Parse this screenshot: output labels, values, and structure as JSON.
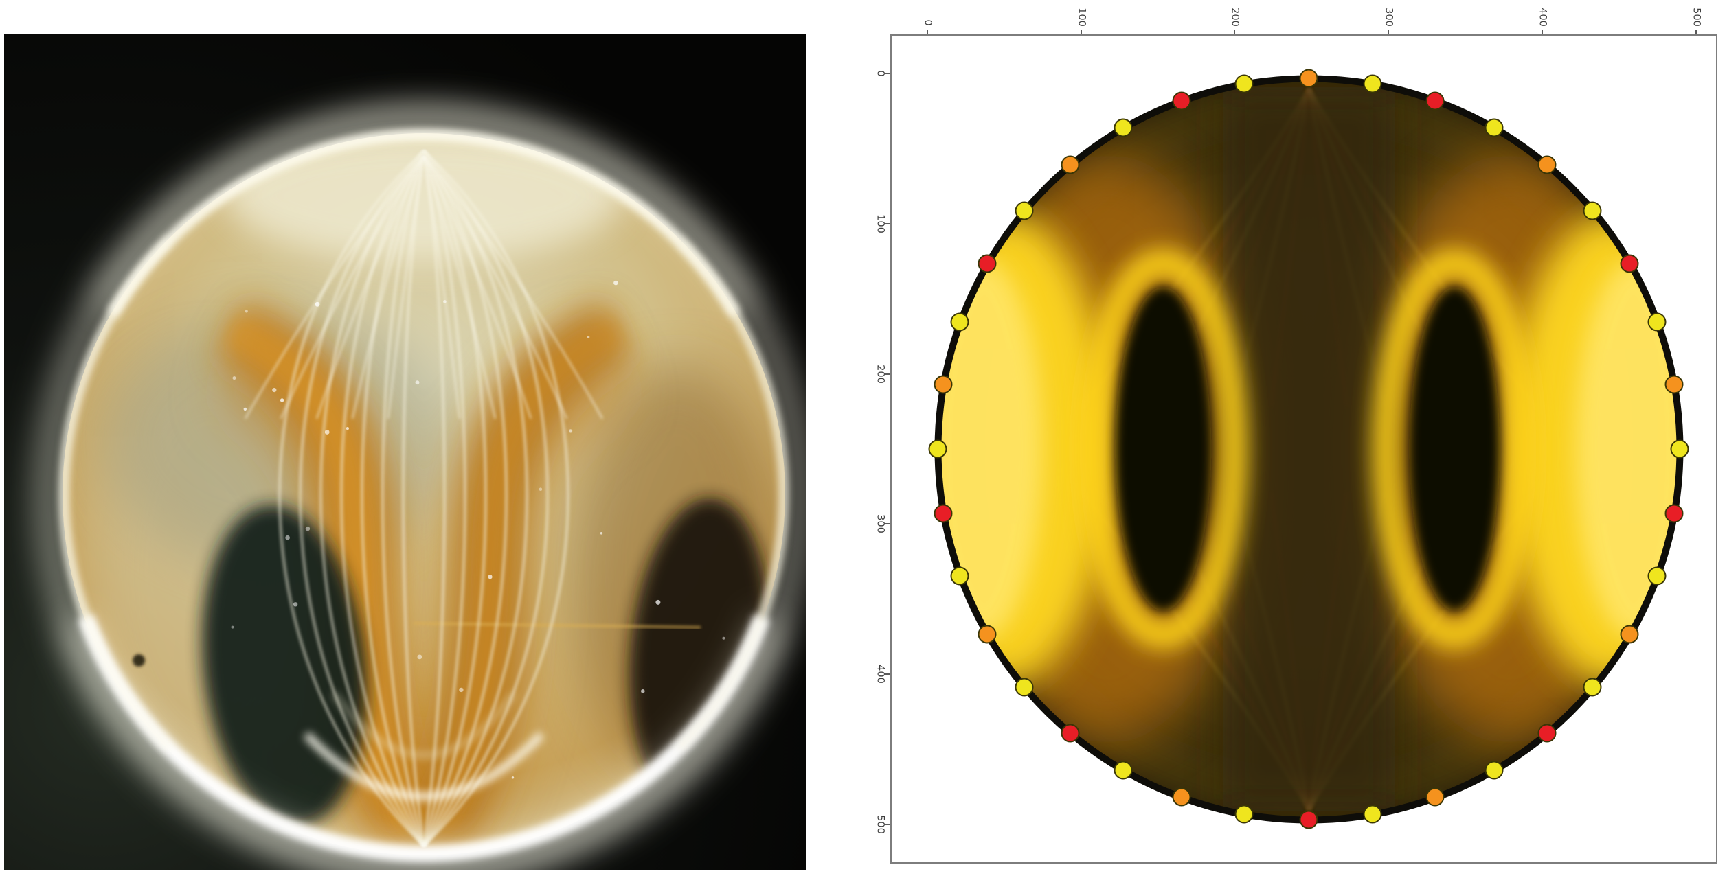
{
  "figure": {
    "background": "#ffffff",
    "panels": {
      "photo": {
        "kind": "experiment-photograph",
        "background": "#060604",
        "dish_rim_glow": "#fffef2",
        "dish_amber": "#c9831f",
        "dish_cream": "#d8d3ae",
        "void_dark": "#16201a"
      },
      "plot": {
        "kind": "simulation-plot",
        "frame_color": "#7d7d7d",
        "tick_color": "#3e3e3e",
        "x_axis": {
          "side": "top",
          "tick_labels": [
            "0",
            "100",
            "200",
            "300",
            "400",
            "500"
          ],
          "label_rotation_deg": 90
        },
        "y_axis": {
          "side": "left",
          "tick_labels": [
            "0",
            "100",
            "200",
            "300",
            "400",
            "500"
          ],
          "label_rotation_deg": 90
        }
      }
    }
  },
  "chart_data": {
    "type": "scatter",
    "title": "",
    "xlabel": "",
    "ylabel": "",
    "x_ticks": [
      0,
      100,
      200,
      300,
      400,
      500
    ],
    "y_ticks": [
      0,
      100,
      200,
      300,
      400,
      500
    ],
    "x_range": [
      -24,
      514
    ],
    "y_range": [
      -26,
      526
    ],
    "y_direction": "down",
    "grid": false,
    "legend": "none",
    "circle": {
      "center": [
        248,
        250
      ],
      "radius_units": 244,
      "rim_color": "#0e0d09"
    },
    "boundary_markers": {
      "count": 36,
      "angle_step_deg": 10,
      "marker_diameter_px": 27,
      "palette": {
        "yellow": "#efe51e",
        "orange": "#f5921e",
        "red": "#e81e26",
        "outline": "#3a3606"
      },
      "points": [
        {
          "angle_deg": 0,
          "color": "yellow"
        },
        {
          "angle_deg": 10,
          "color": "orange"
        },
        {
          "angle_deg": 20,
          "color": "yellow"
        },
        {
          "angle_deg": 30,
          "color": "red"
        },
        {
          "angle_deg": 40,
          "color": "yellow"
        },
        {
          "angle_deg": 50,
          "color": "orange"
        },
        {
          "angle_deg": 60,
          "color": "yellow"
        },
        {
          "angle_deg": 70,
          "color": "red"
        },
        {
          "angle_deg": 80,
          "color": "yellow"
        },
        {
          "angle_deg": 90,
          "color": "orange"
        },
        {
          "angle_deg": 100,
          "color": "yellow"
        },
        {
          "angle_deg": 110,
          "color": "red"
        },
        {
          "angle_deg": 120,
          "color": "yellow"
        },
        {
          "angle_deg": 130,
          "color": "orange"
        },
        {
          "angle_deg": 140,
          "color": "yellow"
        },
        {
          "angle_deg": 150,
          "color": "red"
        },
        {
          "angle_deg": 160,
          "color": "yellow"
        },
        {
          "angle_deg": 170,
          "color": "orange"
        },
        {
          "angle_deg": 180,
          "color": "yellow"
        },
        {
          "angle_deg": 190,
          "color": "red"
        },
        {
          "angle_deg": 200,
          "color": "yellow"
        },
        {
          "angle_deg": 210,
          "color": "orange"
        },
        {
          "angle_deg": 220,
          "color": "yellow"
        },
        {
          "angle_deg": 230,
          "color": "red"
        },
        {
          "angle_deg": 240,
          "color": "yellow"
        },
        {
          "angle_deg": 250,
          "color": "orange"
        },
        {
          "angle_deg": 260,
          "color": "yellow"
        },
        {
          "angle_deg": 270,
          "color": "red"
        },
        {
          "angle_deg": 280,
          "color": "yellow"
        },
        {
          "angle_deg": 290,
          "color": "orange"
        },
        {
          "angle_deg": 300,
          "color": "yellow"
        },
        {
          "angle_deg": 310,
          "color": "red"
        },
        {
          "angle_deg": 320,
          "color": "yellow"
        },
        {
          "angle_deg": 330,
          "color": "orange"
        },
        {
          "angle_deg": 340,
          "color": "yellow"
        },
        {
          "angle_deg": 350,
          "color": "red"
        }
      ]
    }
  }
}
